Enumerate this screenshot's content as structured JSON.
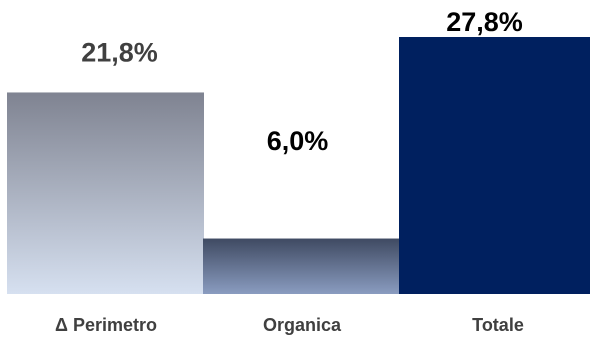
{
  "chart_data": {
    "type": "bar",
    "title": "",
    "xlabel": "",
    "ylabel": "",
    "categories": [
      "Δ Perimetro",
      "Organica",
      "Totale"
    ],
    "values": [
      21.8,
      6.0,
      27.8
    ],
    "value_labels": [
      "21,8%",
      "6,0%",
      "27,8%"
    ],
    "ylim": [
      0,
      27.8
    ],
    "grid": false,
    "legend": "none",
    "colors": {
      "perimetro_top": "#7f8391",
      "perimetro_bottom": "#d6e0f0",
      "organica_top": "#3f4a62",
      "organica_bottom": "#8a9cc0",
      "totale": "#00205f",
      "label_grey": "#404040",
      "label_black": "#000000"
    }
  }
}
